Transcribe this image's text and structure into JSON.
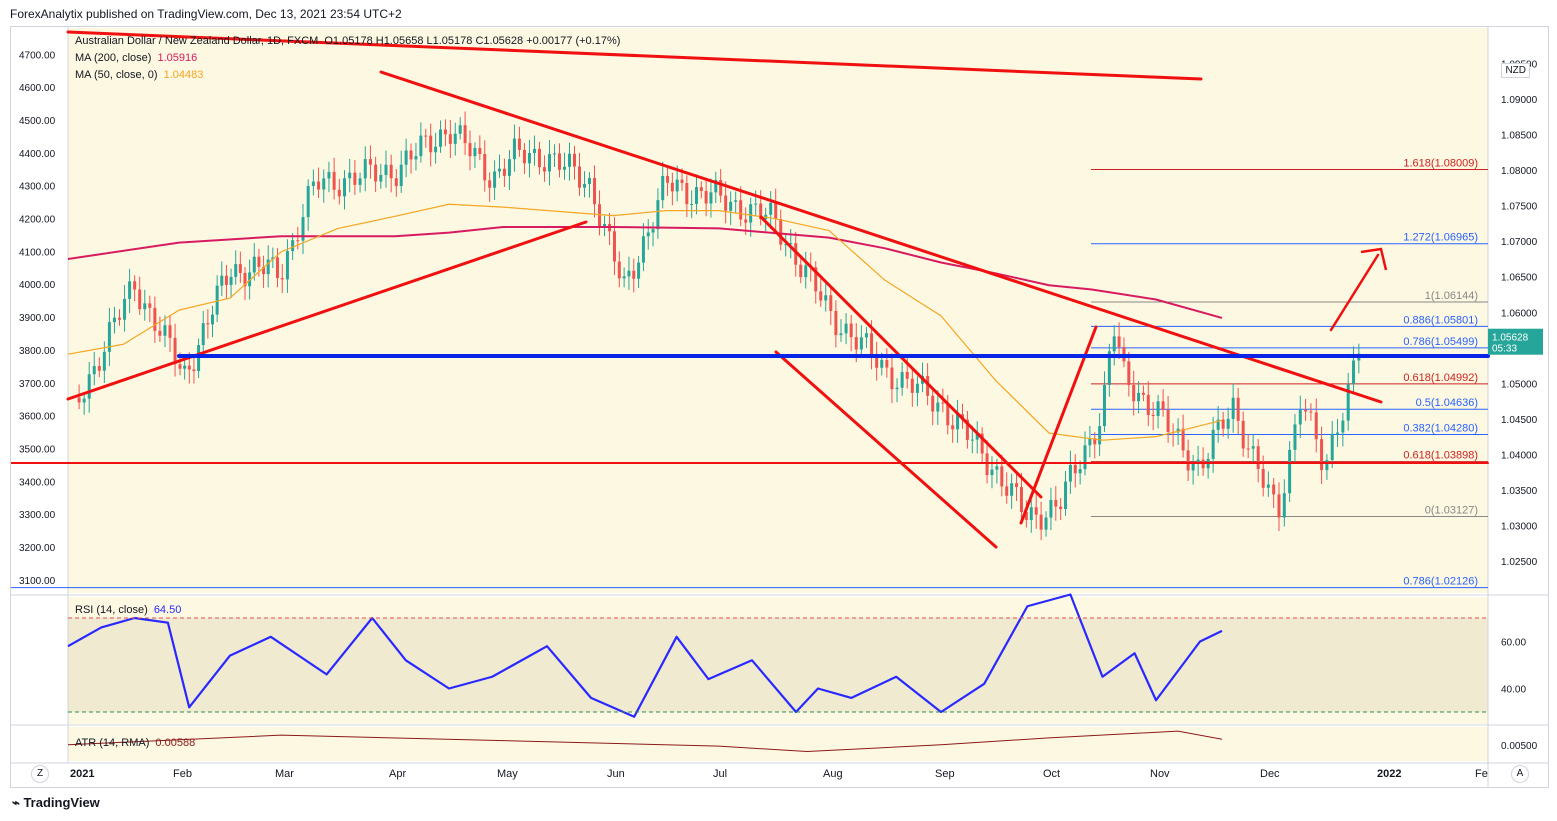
{
  "header": {
    "text": "ForexAnalytix published on TradingView.com, Dec 13, 2021 23:54 UTC+2"
  },
  "legend": {
    "symbol": "Australian Dollar / New Zealand Dollar, 1D, FXCM",
    "ohlc": "O1.05178  H1.05658  L1.05178  C1.05628  +0.00177 (+0.17%)",
    "ma200_label": "MA (200, close)",
    "ma200_value": "1.05916",
    "ma50_label": "MA (50, close, 0)",
    "ma50_value": "1.04483"
  },
  "rsi_legend": {
    "label": "RSI (14, close)",
    "value": "64.50"
  },
  "atr_legend": {
    "label": "ATR (14, RMA)",
    "value": "0.00588"
  },
  "currency_badge": "NZD",
  "price_tag": {
    "price": "1.05628",
    "countdown": "05:33"
  },
  "footer": {
    "brand": "TradingView"
  },
  "nav": {
    "left": "Z",
    "right": "A"
  },
  "colors": {
    "background": "#fdf8e1",
    "candle_up": "#26a69a",
    "candle_down": "#ef5350",
    "ma200": "#d81b60",
    "ma50": "#f5a623",
    "rsi": "#2929ff",
    "atr": "#8b1a1a",
    "trendline": "#f01010",
    "support": "#0a24e6",
    "fib_blue": "#2962ff",
    "fib_red": "#cc2222"
  },
  "chart_data": {
    "type": "candlestick",
    "title": "Australian Dollar / New Zealand Dollar, 1D, FXCM",
    "x_ticks": [
      "2021",
      "Feb",
      "Mar",
      "Apr",
      "May",
      "Jun",
      "Jul",
      "Aug",
      "Sep",
      "Oct",
      "Nov",
      "Dec",
      "2022",
      "Fe"
    ],
    "y_right_ticks": [
      "1.09500",
      "1.09000",
      "1.08500",
      "1.08000",
      "1.07500",
      "1.07000",
      "1.06500",
      "1.06000",
      "1.05000",
      "1.04500",
      "1.04000",
      "1.03500",
      "1.03000",
      "1.02500"
    ],
    "y_left_ticks": [
      "4700.00",
      "4600.00",
      "4500.00",
      "4400.00",
      "4300.00",
      "4200.00",
      "4100.00",
      "4000.00",
      "3900.00",
      "3800.00",
      "3700.00",
      "3600.00",
      "3500.00",
      "3400.00",
      "3300.00",
      "3200.00",
      "3100.00"
    ],
    "ylim": [
      1.0205,
      1.1
    ],
    "left_ylim": [
      3060,
      4780
    ],
    "series": [
      {
        "name": "MA (200, close)",
        "x": [
          0,
          1,
          2,
          3,
          3.5,
          4,
          5,
          6,
          7,
          7.5,
          8,
          8.5,
          9,
          9.4,
          10,
          10.6
        ],
        "values": [
          1.0675,
          1.0698,
          1.0707,
          1.0707,
          1.0712,
          1.072,
          1.072,
          1.0718,
          1.0705,
          1.069,
          1.067,
          1.0655,
          1.0638,
          1.0632,
          1.0618,
          1.0592
        ]
      },
      {
        "name": "MA (50, close, 0)",
        "x": [
          0,
          0.5,
          1,
          1.5,
          2,
          2.5,
          3,
          3.5,
          4,
          5,
          5.5,
          6,
          6.5,
          7,
          7.5,
          8,
          8.5,
          9,
          9.5,
          10,
          10.6
        ],
        "values": [
          1.0541,
          1.0555,
          1.0603,
          1.062,
          1.0685,
          1.0718,
          1.0735,
          1.0752,
          1.0748,
          1.0736,
          1.0743,
          1.0743,
          1.0732,
          1.0715,
          1.0645,
          1.0595,
          1.0505,
          1.043,
          1.042,
          1.0425,
          1.0448
        ]
      },
      {
        "name": "RSI (14, close)",
        "x": [
          0,
          0.3,
          0.6,
          0.9,
          1.1,
          1.5,
          1.9,
          2.4,
          2.8,
          3.1,
          3.5,
          3.9,
          4.4,
          4.8,
          5.2,
          5.6,
          5.9,
          6.3,
          6.7,
          6.9,
          7.2,
          7.6,
          8,
          8.4,
          8.8,
          9.2,
          9.5,
          9.8,
          10,
          10.4,
          10.6
        ],
        "values": [
          58,
          66,
          70,
          68,
          32,
          54,
          62,
          46,
          70,
          52,
          40,
          45,
          58,
          36,
          28,
          62,
          44,
          52,
          30,
          40,
          36,
          45,
          30,
          42,
          75,
          80,
          45,
          55,
          35,
          60,
          64.5
        ]
      },
      {
        "name": "ATR (14, RMA)",
        "x": [
          0,
          2,
          4,
          6,
          6.8,
          8,
          9,
          10.2,
          10.6
        ],
        "values": [
          0.0055,
          0.0062,
          0.0058,
          0.0054,
          0.005,
          0.0055,
          0.006,
          0.0065,
          0.0059
        ]
      }
    ],
    "fibonacci": [
      {
        "label": "1.618(1.08009)",
        "level": 1.08009,
        "color": "red"
      },
      {
        "label": "1.272(1.06965)",
        "level": 1.06965,
        "color": "blue"
      },
      {
        "label": "1(1.06144)",
        "level": 1.06144,
        "color": "gray"
      },
      {
        "label": "0.886(1.05801)",
        "level": 1.05801,
        "color": "blue"
      },
      {
        "label": "0.786(1.05499)",
        "level": 1.05499,
        "color": "blue"
      },
      {
        "label": "0.618(1.04992)",
        "level": 1.04992,
        "color": "red"
      },
      {
        "label": "0.5(1.04636)",
        "level": 1.04636,
        "color": "blue"
      },
      {
        "label": "0.382(1.04280)",
        "level": 1.0428,
        "color": "blue"
      },
      {
        "label": "0.618(1.03898)",
        "level": 1.03898,
        "color": "red"
      },
      {
        "label": "0(1.03127)",
        "level": 1.03127,
        "color": "gray"
      },
      {
        "label": "0.786(1.02126)",
        "level": 1.02126,
        "color": "blue"
      }
    ],
    "rsi_ticks": [
      "60.00",
      "40.00"
    ],
    "atr_ticks": [
      "0.00500"
    ],
    "grid": false
  }
}
